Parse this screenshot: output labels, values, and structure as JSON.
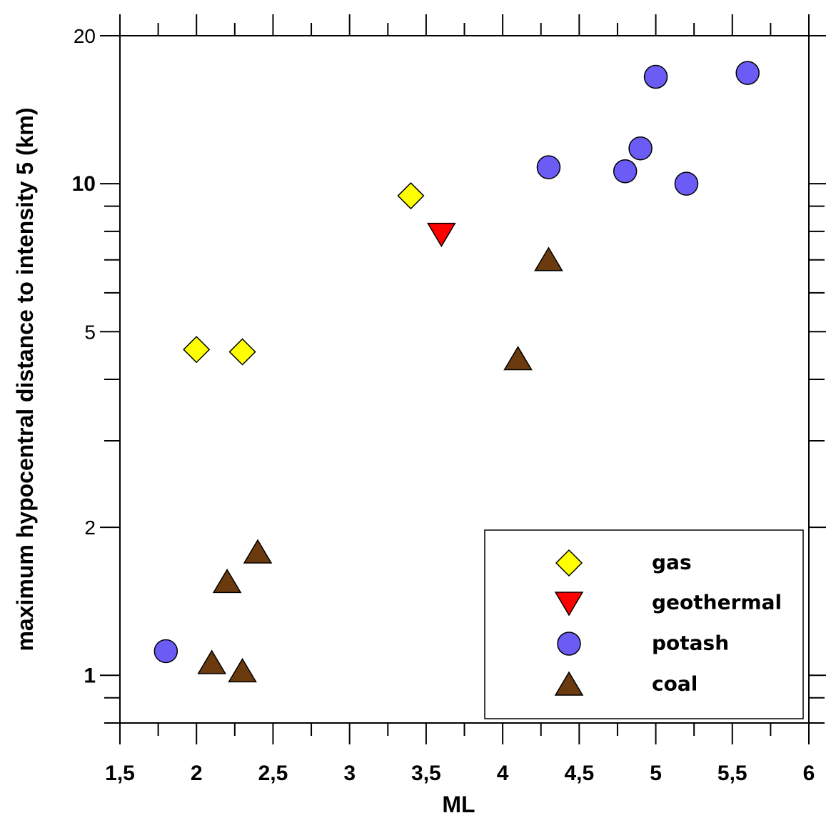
{
  "chart_data": {
    "type": "scatter",
    "xlabel": "ML",
    "ylabel": "maximum hypocentral distance to intensity  5 (km)",
    "xlim": [
      1.5,
      6.0
    ],
    "ylim": [
      0.8,
      20
    ],
    "yscale": "log",
    "x_ticks": [
      {
        "value": 1.5,
        "label": "1,5"
      },
      {
        "value": 2.0,
        "label": "2"
      },
      {
        "value": 2.5,
        "label": "2,5"
      },
      {
        "value": 3.0,
        "label": "3"
      },
      {
        "value": 3.5,
        "label": "3,5"
      },
      {
        "value": 4.0,
        "label": "4"
      },
      {
        "value": 4.5,
        "label": "4,5"
      },
      {
        "value": 5.0,
        "label": "5"
      },
      {
        "value": 5.5,
        "label": "5,5"
      },
      {
        "value": 6.0,
        "label": "6"
      }
    ],
    "y_ticks": [
      {
        "value": 1,
        "label": "1",
        "bold": true
      },
      {
        "value": 2,
        "label": "2",
        "bold": false
      },
      {
        "value": 5,
        "label": "5",
        "bold": false
      },
      {
        "value": 10,
        "label": "10",
        "bold": true
      },
      {
        "value": 20,
        "label": "20",
        "bold": false
      }
    ],
    "grid": false,
    "legend_position": "bottom-right",
    "series": [
      {
        "name": "gas",
        "marker": "diamond",
        "color": "#ffff00",
        "points": [
          [
            2.0,
            4.6
          ],
          [
            2.3,
            4.55
          ],
          [
            3.4,
            9.45
          ]
        ]
      },
      {
        "name": "geothermal",
        "marker": "triangle-down",
        "color": "#ff0000",
        "points": [
          [
            3.6,
            7.9
          ]
        ]
      },
      {
        "name": "potash",
        "marker": "circle",
        "color": "#6a5cf5",
        "points": [
          [
            1.8,
            1.12
          ],
          [
            4.3,
            10.8
          ],
          [
            4.8,
            10.6
          ],
          [
            4.9,
            11.8
          ],
          [
            5.0,
            16.5
          ],
          [
            5.2,
            10.0
          ],
          [
            5.6,
            16.8
          ]
        ]
      },
      {
        "name": "coal",
        "marker": "triangle-up",
        "color": "#6b3a0e",
        "points": [
          [
            2.1,
            1.06
          ],
          [
            2.2,
            1.55
          ],
          [
            2.3,
            1.02
          ],
          [
            2.4,
            1.78
          ],
          [
            4.1,
            4.4
          ],
          [
            4.3,
            7.0
          ]
        ]
      }
    ]
  }
}
